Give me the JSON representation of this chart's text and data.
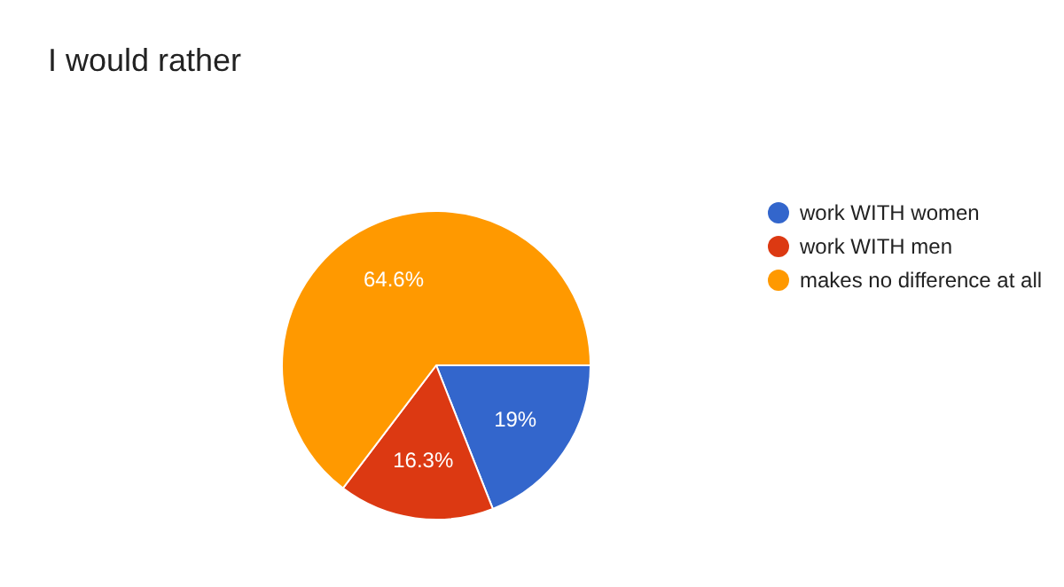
{
  "chart_data": {
    "type": "pie",
    "title": "I would rather",
    "categories": [
      "work WITH women",
      "work WITH men",
      "makes no difference at all"
    ],
    "values": [
      19,
      16.3,
      64.6
    ],
    "colors": [
      "#3366cc",
      "#dc3912",
      "#ff9900"
    ],
    "value_labels": [
      "19%",
      "16.3%",
      "64.6%"
    ],
    "legend": "right"
  }
}
